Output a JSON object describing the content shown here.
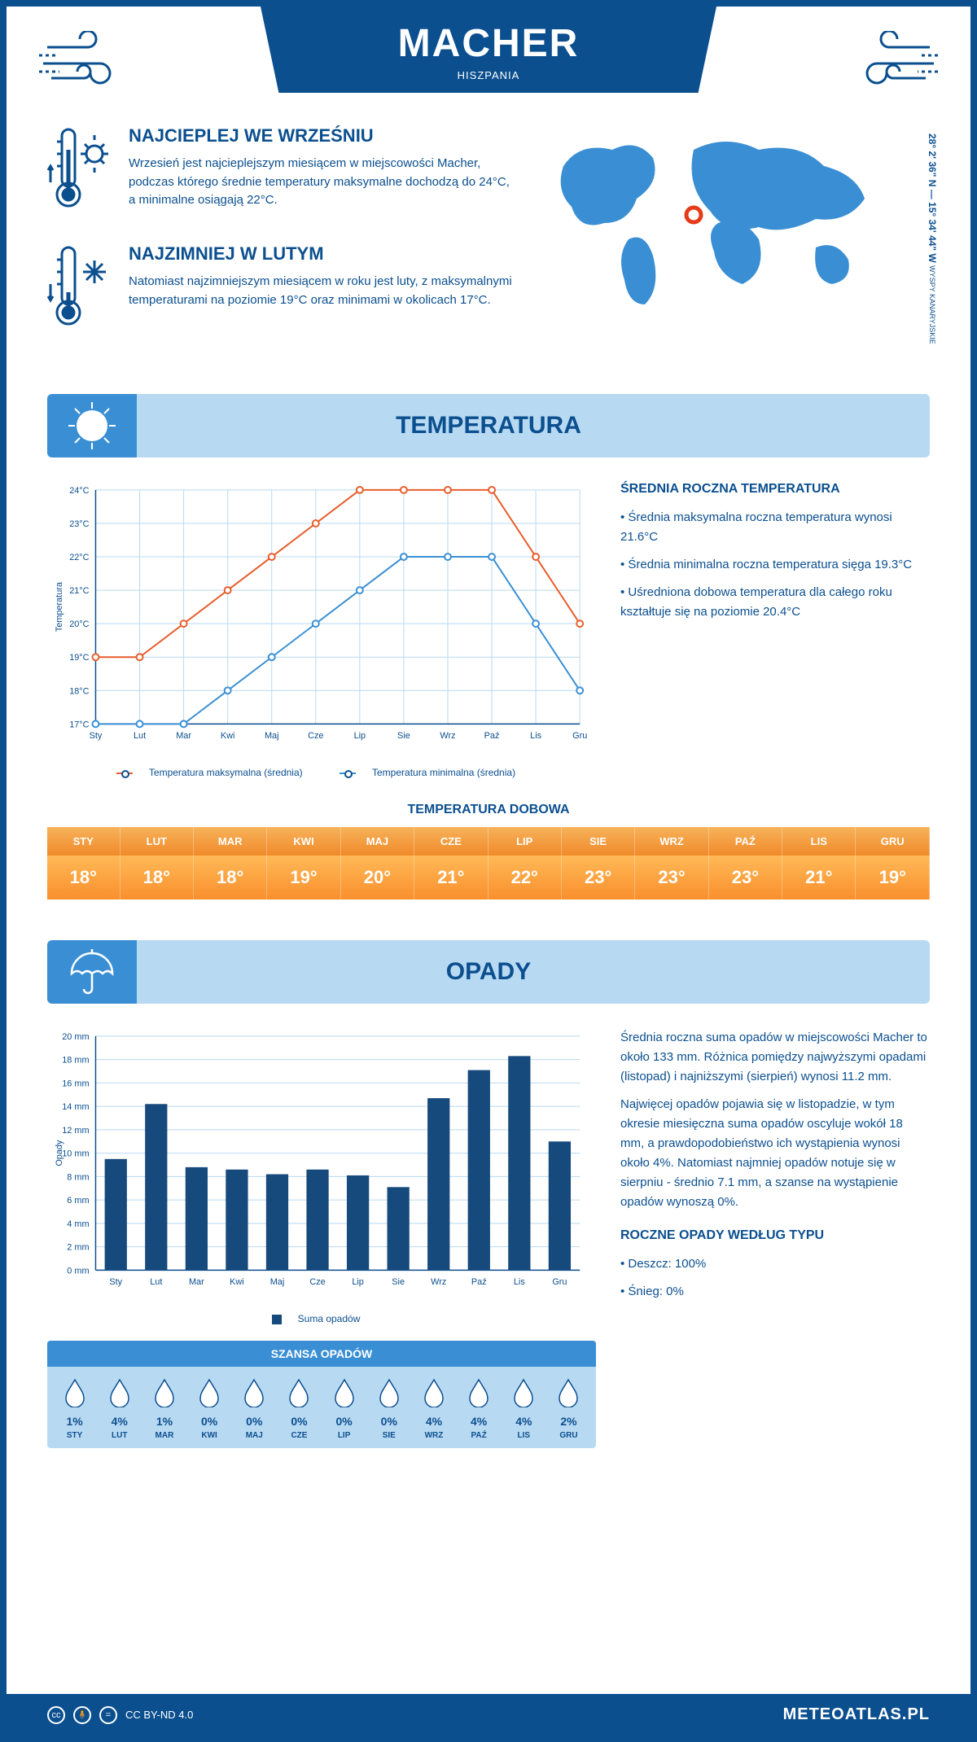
{
  "header": {
    "title": "MACHER",
    "country": "HISZPANIA"
  },
  "coords": {
    "main": "28° 2' 36\" N — 15° 34' 44\" W",
    "sub": "WYSPY KANARYJSKIE"
  },
  "warmest": {
    "heading": "NAJCIEPLEJ WE WRZEŚNIU",
    "text": "Wrzesień jest najcieplejszym miesiącem w miejscowości Macher, podczas którego średnie temperatury maksymalne dochodzą do 24°C, a minimalne osiągają 22°C."
  },
  "coldest": {
    "heading": "NAJZIMNIEJ W LUTYM",
    "text": "Natomiast najzimniejszym miesiącem w roku jest luty, z maksymalnymi temperaturami na poziomie 19°C oraz minimami w okolicach 17°C."
  },
  "section_temperature": "TEMPERATURA",
  "section_precip": "OPADY",
  "temp_chart": {
    "months": [
      "Sty",
      "Lut",
      "Mar",
      "Kwi",
      "Maj",
      "Cze",
      "Lip",
      "Sie",
      "Wrz",
      "Paź",
      "Lis",
      "Gru"
    ],
    "max_series": [
      19,
      19,
      20,
      21,
      22,
      23,
      24,
      24,
      24,
      24,
      22,
      20
    ],
    "min_series": [
      17,
      17,
      17,
      18,
      19,
      20,
      21,
      22,
      22,
      22,
      20,
      18
    ],
    "ylabel": "Temperatura",
    "ymin": 17,
    "ymax": 24,
    "ystep": 1,
    "max_color": "#e85d2b",
    "min_color": "#3a8fd4",
    "grid_color": "#b8d9f2",
    "bg": "#ffffff",
    "legend_max": "Temperatura maksymalna (średnia)",
    "legend_min": "Temperatura minimalna (średnia)"
  },
  "temp_side": {
    "heading": "ŚREDNIA ROCZNA TEMPERATURA",
    "bullets": [
      "Średnia maksymalna roczna temperatura wynosi 21.6°C",
      "Średnia minimalna roczna temperatura sięga 19.3°C",
      "Uśredniona dobowa temperatura dla całego roku kształtuje się na poziomie 20.4°C"
    ]
  },
  "daily": {
    "heading": "TEMPERATURA DOBOWA",
    "months": [
      "STY",
      "LUT",
      "MAR",
      "KWI",
      "MAJ",
      "CZE",
      "LIP",
      "SIE",
      "WRZ",
      "PAŹ",
      "LIS",
      "GRU"
    ],
    "values": [
      "18°",
      "18°",
      "18°",
      "19°",
      "20°",
      "21°",
      "22°",
      "23°",
      "23°",
      "23°",
      "21°",
      "19°"
    ]
  },
  "precip_chart": {
    "months": [
      "Sty",
      "Lut",
      "Mar",
      "Kwi",
      "Maj",
      "Cze",
      "Lip",
      "Sie",
      "Wrz",
      "Paź",
      "Lis",
      "Gru"
    ],
    "values": [
      9.5,
      14.2,
      8.8,
      8.6,
      8.2,
      8.6,
      8.1,
      7.1,
      14.7,
      17.1,
      18.3,
      11.0
    ],
    "ylabel": "Opady",
    "ymin": 0,
    "ymax": 20,
    "ystep": 2,
    "bar_color": "#164a7c",
    "grid_color": "#b8d9f2",
    "legend": "Suma opadów"
  },
  "precip_side": {
    "p1": "Średnia roczna suma opadów w miejscowości Macher to około 133 mm. Różnica pomiędzy najwyższymi opadami (listopad) i najniższymi (sierpień) wynosi 11.2 mm.",
    "p2": "Najwięcej opadów pojawia się w listopadzie, w tym okresie miesięczna suma opadów oscyluje wokół 18 mm, a prawdopodobieństwo ich wystąpienia wynosi około 4%. Natomiast najmniej opadów notuje się w sierpniu - średnio 7.1 mm, a szanse na wystąpienie opadów wynoszą 0%.",
    "type_heading": "ROCZNE OPADY WEDŁUG TYPU",
    "types": [
      "Deszcz: 100%",
      "Śnieg: 0%"
    ]
  },
  "chance": {
    "heading": "SZANSA OPADÓW",
    "months": [
      "STY",
      "LUT",
      "MAR",
      "KWI",
      "MAJ",
      "CZE",
      "LIP",
      "SIE",
      "WRZ",
      "PAŹ",
      "LIS",
      "GRU"
    ],
    "values": [
      "1%",
      "4%",
      "1%",
      "0%",
      "0%",
      "0%",
      "0%",
      "0%",
      "4%",
      "4%",
      "4%",
      "2%"
    ]
  },
  "footer": {
    "license": "CC BY-ND 4.0",
    "brand": "METEOATLAS.PL"
  }
}
